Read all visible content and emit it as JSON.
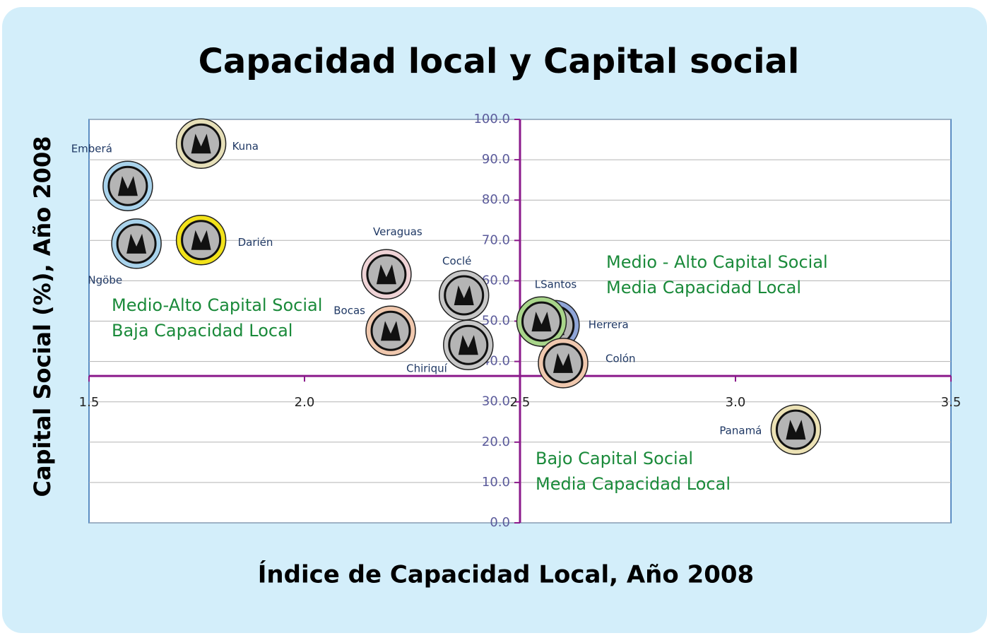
{
  "chart_data": {
    "type": "scatter",
    "title": "Capacidad local y Capital social",
    "x_label": "Índice de Capacidad Local, Año 2008",
    "y_label": "Capital Social (%), Año 2008",
    "xlim": [
      1.5,
      3.5
    ],
    "ylim": [
      0,
      100
    ],
    "xticks": [
      1.5,
      {
        "value": 2,
        "label": "2.0"
      },
      2.5,
      {
        "value": 3,
        "label": "3.0"
      },
      3.5
    ],
    "yticks": [
      {
        "value": 0,
        "label": "0.0"
      },
      {
        "value": 10,
        "label": "10.0"
      },
      {
        "value": 20,
        "label": "20.0"
      },
      {
        "value": 30,
        "label": "30.0"
      },
      {
        "value": 40,
        "label": "40.0"
      },
      {
        "value": 50,
        "label": "50.0"
      },
      {
        "value": 60,
        "label": "60.0"
      },
      {
        "value": 70,
        "label": "70.0"
      },
      {
        "value": 80,
        "label": "80.0"
      },
      {
        "value": 90,
        "label": "90.0"
      },
      {
        "value": 100,
        "label": "100.0"
      }
    ],
    "x_axis_crosses_y": 36.4,
    "y_axis_crosses_x": 2.5,
    "grid": true,
    "points": [
      {
        "label": "Kuna",
        "x": 1.76,
        "y": 94.0,
        "color": "#e6dfb8"
      },
      {
        "label": "Emberá",
        "x": 1.59,
        "y": 83.5,
        "color": "#a9d3ec"
      },
      {
        "label": "Ngöbe",
        "x": 1.61,
        "y": 69.2,
        "color": "#a9d3ec"
      },
      {
        "label": "Darién",
        "x": 1.76,
        "y": 70.1,
        "color": "#f2e21a"
      },
      {
        "label": "Veraguas",
        "x": 2.19,
        "y": 61.6,
        "color": "#efd3d6"
      },
      {
        "label": "Bocas",
        "x": 2.2,
        "y": 47.6,
        "color": "#f0c8ae"
      },
      {
        "label": "Coclé",
        "x": 2.37,
        "y": 56.4,
        "color": "#c7c7c7"
      },
      {
        "label": "Chiriquí",
        "x": 2.38,
        "y": 44.1,
        "color": "#c7c7c7"
      },
      {
        "label": "Herrera",
        "x": 2.58,
        "y": 49.0,
        "color": "#8fa5d8"
      },
      {
        "label": "LSantos",
        "x": 2.55,
        "y": 49.9,
        "color": "#a8d58a"
      },
      {
        "label": "Colón",
        "x": 2.6,
        "y": 39.6,
        "color": "#f0c8ae"
      },
      {
        "label": "Panamá",
        "x": 3.14,
        "y": 23.1,
        "color": "#ece2b5"
      }
    ],
    "annotations": [
      [
        "Medio-Alto Capital Social",
        "Baja Capacidad Local"
      ],
      [
        "Medio - Alto Capital Social",
        "Media Capacidad Local"
      ],
      [
        "Bajo Capital Social",
        "Media Capacidad Local"
      ]
    ]
  }
}
